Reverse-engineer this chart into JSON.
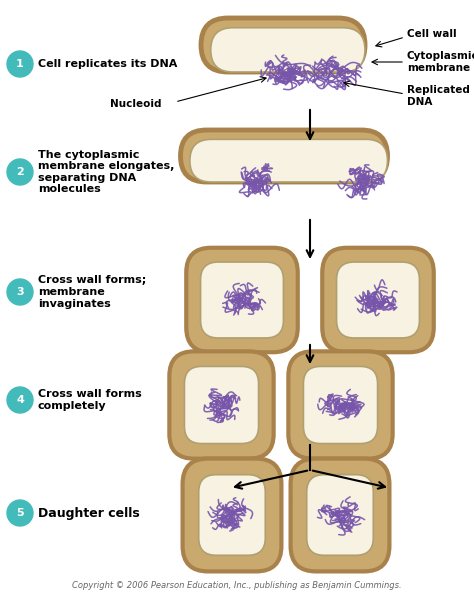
{
  "bg_color": "#ffffff",
  "cell_wall_color": "#c9a96e",
  "cell_wall_edge_color": "#a8824a",
  "cell_mem_color": "#d9c99e",
  "cell_interior_color": "#f7f2e2",
  "cell_mem_edge": "#b0a070",
  "dna_color": "#7755aa",
  "arrow_color": "#222222",
  "step_circle_color": "#44bbbb",
  "step_circle_text": "#ffffff",
  "step_labels": [
    "Cell replicates its DNA",
    "The cytoplasmic\nmembrane elongates,\nseparating DNA\nmolecules",
    "Cross wall forms;\nmembrane\ninvaginates",
    "Cross wall forms\ncompletely",
    "Daughter cells"
  ],
  "copyright": "Copyright © 2006 Pearson Education, Inc., publishing as Benjamin Cummings.",
  "fig_width": 4.74,
  "fig_height": 5.98
}
